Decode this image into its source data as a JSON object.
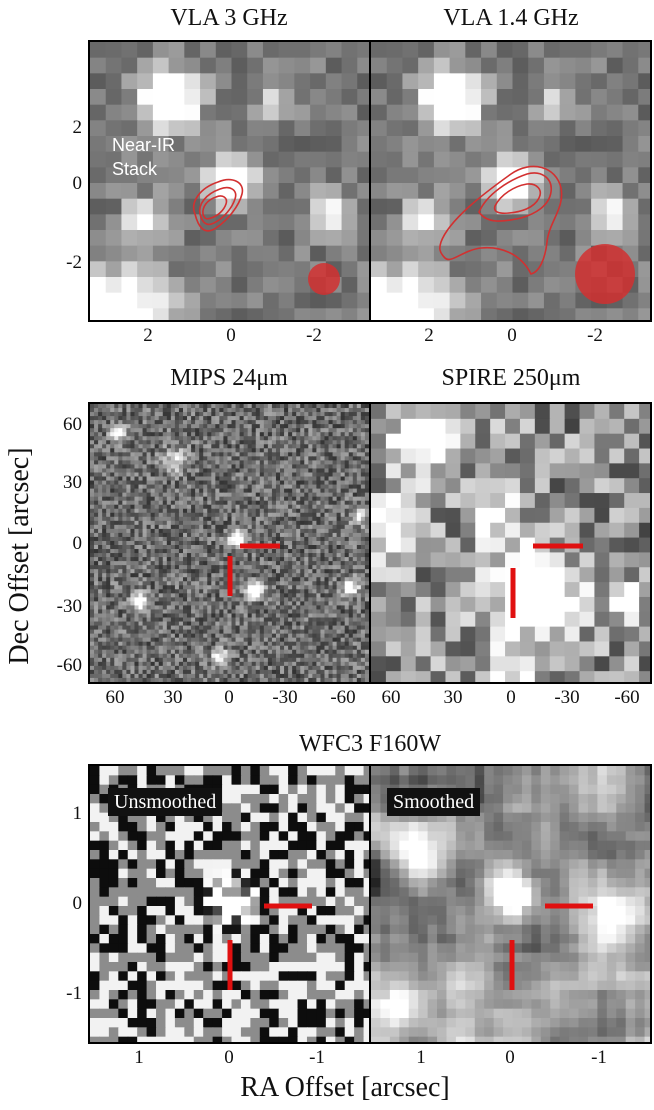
{
  "figure": {
    "y_axis_title": "Dec Offset [arcsec]",
    "x_axis_title": "RA Offset [arcsec]"
  },
  "row1": {
    "left_title": "VLA 3 GHz",
    "right_title": "VLA 1.4 GHz",
    "left_label_line1": "Near-IR",
    "left_label_line2": "Stack",
    "y_ticks": [
      "2",
      "0",
      "-2"
    ],
    "x_ticks": [
      "2",
      "0",
      "-2"
    ],
    "contour_color": "#d23030"
  },
  "row2": {
    "left_title": "MIPS 24μm",
    "right_title": "SPIRE 250μm",
    "y_ticks": [
      "60",
      "30",
      "0",
      "-30",
      "-60"
    ],
    "x_ticks": [
      "60",
      "30",
      "0",
      "-30",
      "-60"
    ],
    "marker_color": "#e01010"
  },
  "row3": {
    "title": "WFC3 F160W",
    "left_tag": "Unsmoothed",
    "right_tag": "Smoothed",
    "y_ticks": [
      "1",
      "0",
      "-1"
    ],
    "x_ticks": [
      "1",
      "0",
      "-1"
    ],
    "marker_color": "#e01010"
  }
}
